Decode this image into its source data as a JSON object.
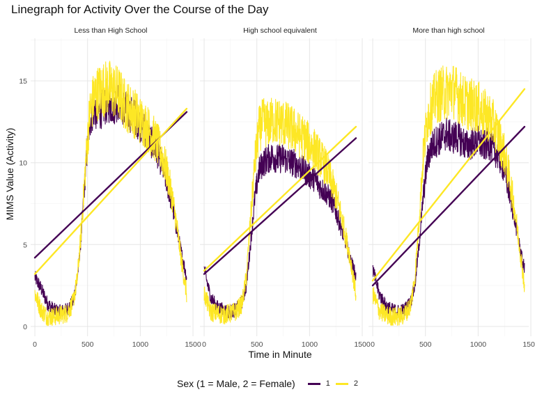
{
  "chart_data": {
    "type": "line",
    "title": "Linegraph for Activity Over the Course of the Day",
    "xlabel": "Time in Minute",
    "ylabel": "MIMS Value (Activity)",
    "xlim": [
      -40,
      1480
    ],
    "ylim": [
      -0.6,
      17.6
    ],
    "x_ticks": [
      0,
      500,
      1000,
      1500
    ],
    "x_tick_labels": [
      "0",
      "500",
      "1000",
      "1500"
    ],
    "y_ticks": [
      0,
      5,
      10,
      15
    ],
    "y_tick_labels": [
      "0",
      "5",
      "10",
      "15"
    ],
    "grid": true,
    "legend": {
      "title": "Sex (1 = Male, 2 = Female)",
      "placement": "bottom",
      "entries": [
        {
          "label": "1",
          "color": "#440154"
        },
        {
          "label": "2",
          "color": "#FDE725"
        }
      ]
    },
    "colors": {
      "1": "#440154",
      "2": "#FDE725"
    },
    "panels": [
      {
        "label": "Less than High School",
        "series": [
          {
            "name": "1",
            "x": [
              0,
              60,
              120,
              180,
              240,
              300,
              360,
              400,
              440,
              480,
              520,
              560,
              600,
              650,
              700,
              750,
              800,
              850,
              900,
              950,
              1000,
              1050,
              1100,
              1150,
              1200,
              1250,
              1300,
              1350,
              1390,
              1420,
              1440
            ],
            "y": [
              3.0,
              2.3,
              1.4,
              1.0,
              0.9,
              1.0,
              1.5,
              2.8,
              5.5,
              9.5,
              12.5,
              13.3,
              13.0,
              13.4,
              13.6,
              13.5,
              13.8,
              13.3,
              13.0,
              12.8,
              12.3,
              12.0,
              11.3,
              10.8,
              10.0,
              8.8,
              7.5,
              5.8,
              4.5,
              3.6,
              3.0
            ],
            "trend": [
              4.2,
              13.1
            ]
          },
          {
            "name": "2",
            "x": [
              0,
              60,
              120,
              180,
              240,
              300,
              360,
              400,
              440,
              480,
              520,
              560,
              600,
              650,
              700,
              750,
              800,
              850,
              900,
              950,
              1000,
              1050,
              1100,
              1150,
              1200,
              1250,
              1300,
              1350,
              1390,
              1420,
              1440
            ],
            "y": [
              2.0,
              1.0,
              0.6,
              0.6,
              0.7,
              0.8,
              1.4,
              2.8,
              5.8,
              9.8,
              13.0,
              14.0,
              14.3,
              14.5,
              14.6,
              14.4,
              14.2,
              13.6,
              13.3,
              13.0,
              12.6,
              12.3,
              11.8,
              11.3,
              10.6,
              9.5,
              8.0,
              6.0,
              4.0,
              2.8,
              2.0
            ],
            "trend": [
              3.2,
              13.3
            ]
          }
        ]
      },
      {
        "label": "High school equivalent",
        "series": [
          {
            "name": "1",
            "x": [
              0,
              60,
              120,
              180,
              240,
              300,
              360,
              400,
              440,
              480,
              520,
              560,
              600,
              650,
              700,
              750,
              800,
              850,
              900,
              950,
              1000,
              1050,
              1100,
              1150,
              1200,
              1250,
              1300,
              1350,
              1390,
              1420,
              1440
            ],
            "y": [
              3.5,
              1.8,
              1.2,
              1.0,
              0.9,
              1.0,
              1.5,
              2.5,
              5.0,
              7.8,
              9.5,
              10.0,
              10.2,
              10.4,
              10.2,
              10.3,
              10.1,
              10.0,
              9.8,
              9.5,
              9.2,
              9.0,
              8.5,
              8.2,
              7.8,
              7.0,
              6.0,
              5.0,
              4.0,
              3.5,
              3.0
            ],
            "trend": [
              3.2,
              11.5
            ]
          },
          {
            "name": "2",
            "x": [
              0,
              60,
              120,
              180,
              240,
              300,
              360,
              400,
              440,
              480,
              520,
              560,
              600,
              650,
              700,
              750,
              800,
              850,
              900,
              950,
              1000,
              1050,
              1100,
              1150,
              1200,
              1250,
              1300,
              1350,
              1390,
              1420,
              1440
            ],
            "y": [
              2.0,
              0.9,
              0.8,
              0.7,
              0.8,
              0.9,
              1.4,
              3.0,
              6.5,
              10.0,
              12.0,
              12.5,
              12.3,
              12.6,
              12.5,
              12.4,
              12.2,
              12.0,
              11.7,
              11.5,
              11.1,
              10.8,
              10.3,
              9.8,
              9.0,
              8.0,
              6.8,
              5.3,
              4.0,
              2.8,
              2.0
            ],
            "trend": [
              3.4,
              12.2
            ]
          }
        ]
      },
      {
        "label": "More than high school",
        "series": [
          {
            "name": "1",
            "x": [
              0,
              60,
              120,
              180,
              240,
              300,
              360,
              400,
              440,
              480,
              520,
              560,
              600,
              650,
              700,
              750,
              800,
              850,
              900,
              950,
              1000,
              1050,
              1100,
              1150,
              1200,
              1250,
              1300,
              1350,
              1390,
              1420,
              1440
            ],
            "y": [
              3.5,
              2.0,
              1.3,
              1.0,
              0.9,
              1.0,
              1.5,
              2.5,
              5.0,
              8.0,
              10.2,
              11.0,
              11.3,
              11.5,
              11.8,
              11.5,
              11.6,
              11.3,
              11.0,
              11.2,
              11.3,
              11.0,
              11.2,
              10.8,
              10.3,
              9.5,
              8.0,
              6.5,
              5.0,
              4.0,
              3.5
            ],
            "trend": [
              2.5,
              12.2
            ]
          },
          {
            "name": "2",
            "x": [
              0,
              60,
              120,
              180,
              240,
              300,
              360,
              400,
              440,
              480,
              520,
              560,
              600,
              650,
              700,
              750,
              800,
              850,
              900,
              950,
              1000,
              1050,
              1100,
              1150,
              1200,
              1250,
              1300,
              1350,
              1390,
              1420,
              1440
            ],
            "y": [
              2.0,
              1.0,
              0.7,
              0.6,
              0.6,
              0.7,
              1.3,
              3.0,
              6.5,
              10.5,
              12.8,
              13.5,
              14.0,
              14.2,
              14.3,
              14.5,
              14.2,
              13.8,
              13.6,
              13.5,
              13.4,
              13.0,
              12.8,
              12.3,
              11.5,
              10.5,
              9.0,
              7.0,
              5.0,
              3.5,
              2.5
            ],
            "trend": [
              2.8,
              14.5
            ]
          }
        ]
      }
    ]
  }
}
